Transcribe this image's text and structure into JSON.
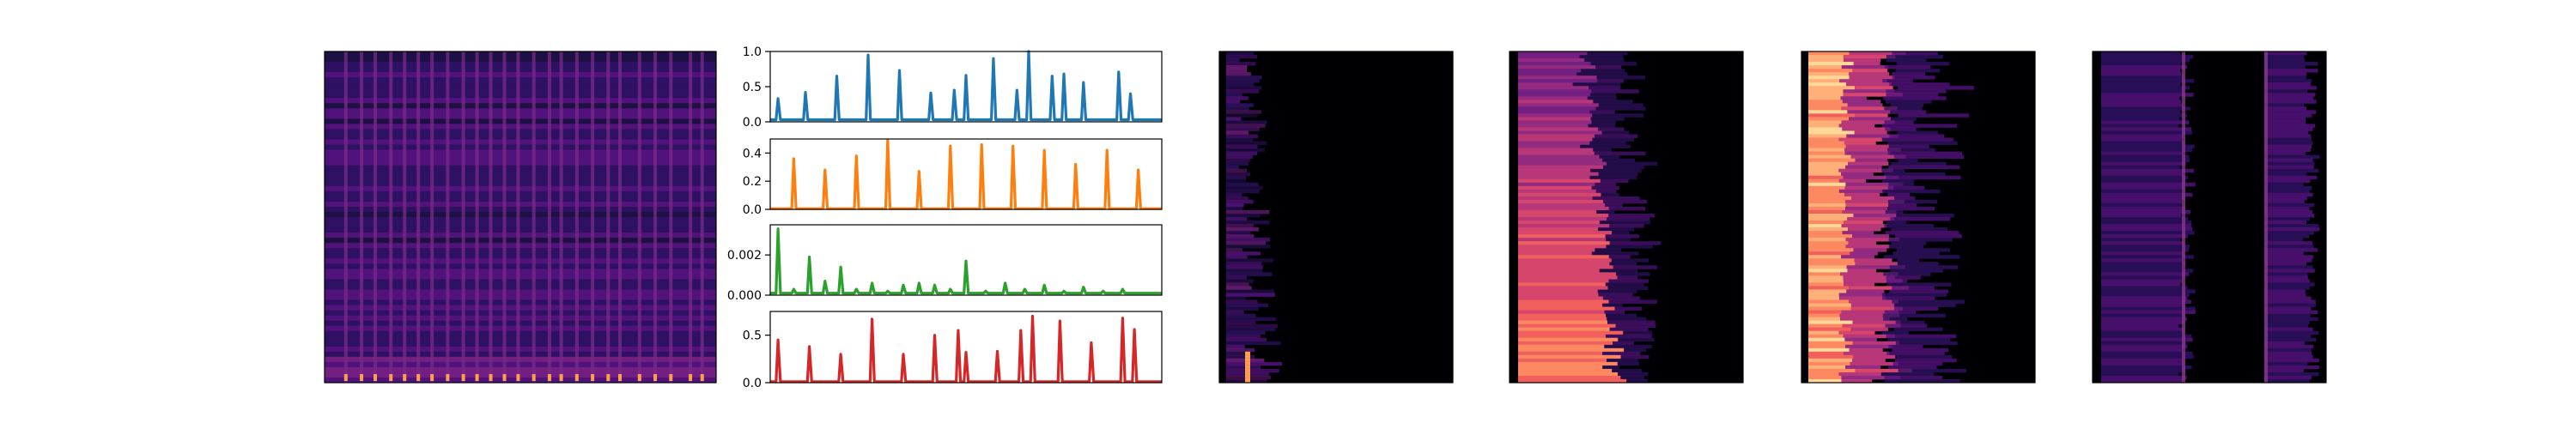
{
  "chart_data": [
    {
      "type": "heatmap",
      "colormap": "magma",
      "content": "spectrogram with vertical onset stripes",
      "onset_positions": [
        0.05,
        0.09,
        0.125,
        0.165,
        0.2,
        0.235,
        0.27,
        0.31,
        0.35,
        0.385,
        0.42,
        0.455,
        0.49,
        0.53,
        0.57,
        0.6,
        0.64,
        0.68,
        0.72,
        0.75,
        0.8,
        0.84,
        0.88,
        0.93,
        0.96
      ]
    },
    {
      "type": "line",
      "color": "#1f77b4",
      "ylim": [
        0,
        1.0
      ],
      "yticks": [
        "0.0",
        "0.5",
        "1.0"
      ],
      "x": [
        0.02,
        0.09,
        0.17,
        0.25,
        0.33,
        0.41,
        0.47,
        0.5,
        0.57,
        0.63,
        0.66,
        0.72,
        0.75,
        0.8,
        0.89,
        0.92
      ],
      "values": [
        0.33,
        0.42,
        0.65,
        0.95,
        0.73,
        0.41,
        0.45,
        0.66,
        0.9,
        0.45,
        1.0,
        0.65,
        0.68,
        0.56,
        0.71,
        0.4
      ],
      "baseline": 0.03
    },
    {
      "type": "line",
      "color": "#ff7f0e",
      "ylim": [
        0,
        0.5
      ],
      "yticks": [
        "0.0",
        "0.2",
        "0.4"
      ],
      "x": [
        0.06,
        0.14,
        0.22,
        0.3,
        0.38,
        0.46,
        0.54,
        0.62,
        0.7,
        0.78,
        0.86,
        0.94
      ],
      "values": [
        0.36,
        0.28,
        0.38,
        0.49,
        0.27,
        0.45,
        0.46,
        0.45,
        0.42,
        0.32,
        0.42,
        0.28
      ],
      "baseline": 0.005
    },
    {
      "type": "line",
      "color": "#2ca02c",
      "ylim": [
        0,
        0.0035
      ],
      "yticks": [
        "0.000",
        "0.002"
      ],
      "x": [
        0.02,
        0.06,
        0.1,
        0.14,
        0.18,
        0.22,
        0.26,
        0.3,
        0.34,
        0.38,
        0.42,
        0.46,
        0.5,
        0.55,
        0.6,
        0.65,
        0.7,
        0.75,
        0.8,
        0.85,
        0.9,
        0.94,
        0.97
      ],
      "values": [
        0.0033,
        0.0003,
        0.0019,
        0.0007,
        0.0014,
        0.0003,
        0.0006,
        0.0002,
        0.0005,
        0.0006,
        0.0005,
        0.0003,
        0.0017,
        0.0002,
        0.0006,
        0.0003,
        0.0005,
        0.0002,
        0.0004,
        0.0002,
        0.0003,
        0.0001,
        0.0001
      ],
      "baseline": 0.0001
    },
    {
      "type": "line",
      "color": "#d62728",
      "ylim": [
        0,
        0.75
      ],
      "yticks": [
        "0.0",
        "0.5"
      ],
      "x": [
        0.02,
        0.1,
        0.18,
        0.26,
        0.34,
        0.42,
        0.48,
        0.5,
        0.58,
        0.64,
        0.67,
        0.74,
        0.82,
        0.9,
        0.93
      ],
      "values": [
        0.45,
        0.38,
        0.3,
        0.67,
        0.3,
        0.5,
        0.55,
        0.32,
        0.33,
        0.55,
        0.7,
        0.65,
        0.42,
        0.68,
        0.56
      ],
      "baseline": 0.01
    },
    {
      "type": "heatmap",
      "colormap": "magma",
      "content": "mostly dark, sparse purple near left edge"
    },
    {
      "type": "heatmap",
      "colormap": "magma",
      "content": "purple/orange band on left third, dark elsewhere"
    },
    {
      "type": "heatmap",
      "colormap": "magma",
      "content": "bright orange band on left side, magenta mid, dark right"
    },
    {
      "type": "heatmap",
      "colormap": "magma",
      "content": "purple texture across, dark gaps with vertical stripes"
    }
  ]
}
